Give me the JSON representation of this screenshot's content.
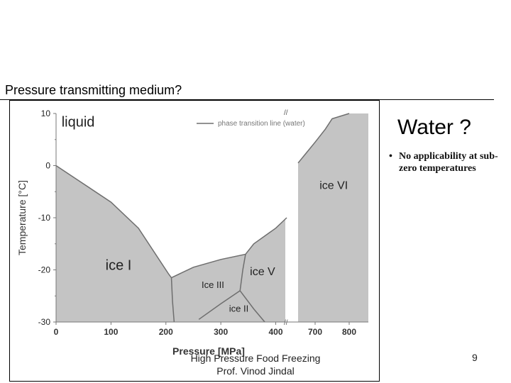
{
  "slide": {
    "heading": "Pressure transmitting medium?",
    "side_title": "Water ?",
    "bullets": [
      "No applicability at sub-zero temperatures"
    ],
    "footer": [
      "High Pressure Food Freezing",
      "Prof. Vinod Jindal"
    ],
    "page_number": "9"
  },
  "chart_data": {
    "type": "area",
    "title": "",
    "xlabel": "Pressure  [MPa]",
    "ylabel": "Temperature  [°C]",
    "xticks": [
      "0",
      "100",
      "200",
      "300",
      "400",
      "700",
      "800"
    ],
    "yticks": [
      "10",
      "0",
      "-10",
      "-20",
      "-30"
    ],
    "xlim": [
      0,
      800
    ],
    "ylim": [
      -30,
      10
    ],
    "axis_break": [
      420,
      650
    ],
    "legend": {
      "label": "phase transition line (water)",
      "position": "top-center"
    },
    "series": [
      {
        "name": "phase transition line (water)",
        "x": [
          0,
          100,
          150,
          205,
          210,
          250,
          300,
          345,
          360,
          400,
          420
        ],
        "y": [
          0,
          -7,
          -12,
          -20.8,
          -21.5,
          -19.5,
          -18,
          -17,
          -15,
          -12,
          -10
        ]
      },
      {
        "name": "phase transition line (water)",
        "x": [
          650,
          675,
          700,
          730,
          750,
          800
        ],
        "y": [
          0.5,
          2.5,
          4.5,
          7,
          9,
          10
        ]
      },
      {
        "x": [
          210,
          212,
          215
        ],
        "y": [
          -21.5,
          -26,
          -30
        ]
      },
      {
        "x": [
          345,
          340,
          335
        ],
        "y": [
          -17,
          -20,
          -24
        ]
      },
      {
        "x": [
          260,
          300,
          335
        ],
        "y": [
          -29.5,
          -26.5,
          -24
        ]
      },
      {
        "x": [
          335,
          360,
          380
        ],
        "y": [
          -24,
          -27.5,
          -30
        ]
      }
    ],
    "regions": [
      {
        "label": "liquid",
        "x": 10,
        "y": 7.5,
        "size": "large"
      },
      {
        "label": "ice I",
        "x": 90,
        "y": -20,
        "size": "large"
      },
      {
        "label": "Ice III",
        "x": 265,
        "y": -23.5,
        "size": "small"
      },
      {
        "label": "ice II",
        "x": 315,
        "y": -28,
        "size": "small"
      },
      {
        "label": "ice V",
        "x": 353,
        "y": -21,
        "size": "medium"
      },
      {
        "label": "ice VI",
        "x": 713,
        "y": -4.5,
        "size": "medium"
      }
    ],
    "grid": false
  }
}
